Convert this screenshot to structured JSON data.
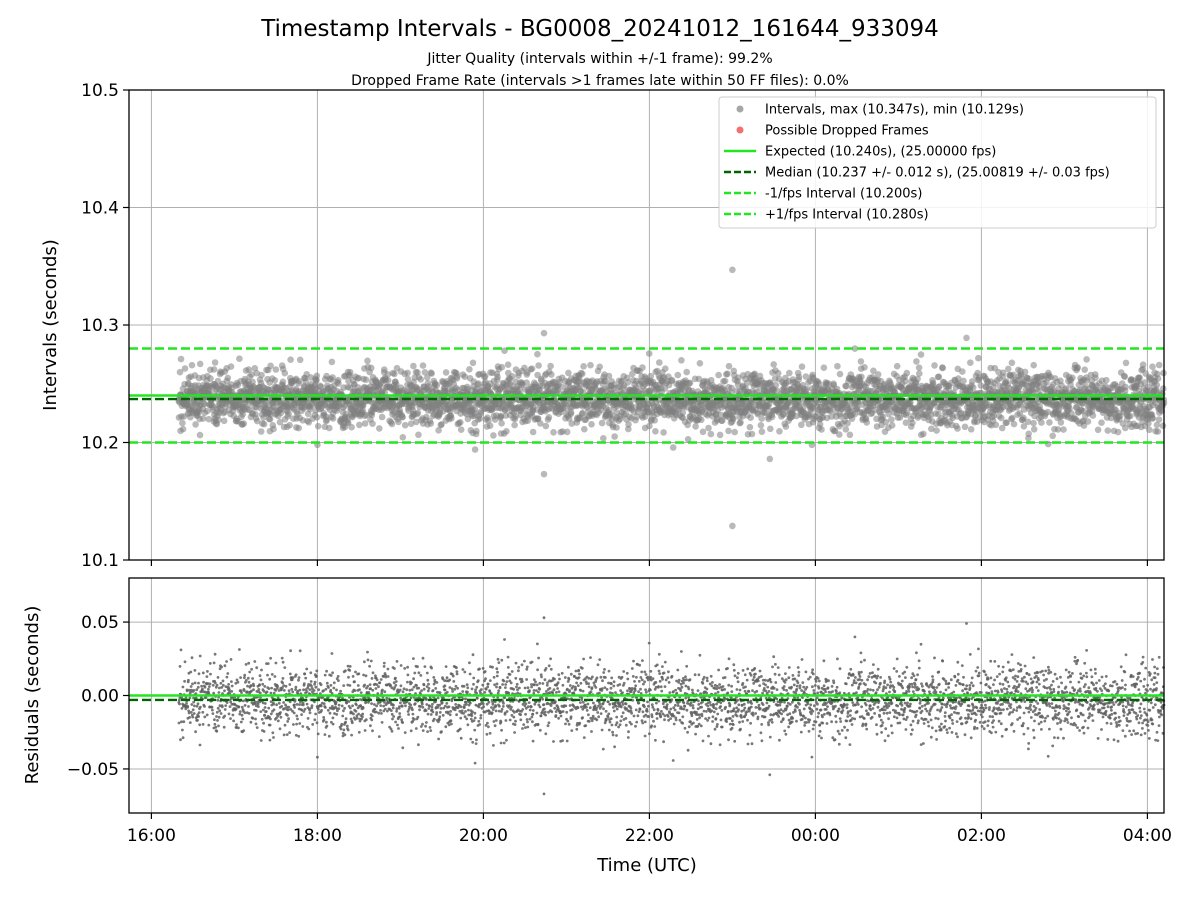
{
  "figure": {
    "title": "Timestamp Intervals - BG0008_20241012_161644_933094",
    "subtitle_1": "Jitter Quality (intervals within +/-1 frame): 99.2%",
    "subtitle_2": "Dropped Frame Rate (intervals >1 frames late within 50 FF files): 0.0%"
  },
  "colors": {
    "points": "#808080",
    "dropped": "#f06060",
    "expected": "#22e622",
    "median": "#006400",
    "fps_interval": "#22e622",
    "grid": "#b0b0b0"
  },
  "chart_data": [
    {
      "type": "scatter",
      "xlabel": "",
      "ylabel": "Intervals (seconds)",
      "ylim": [
        10.1,
        10.5
      ],
      "xlim_hours": [
        15.73,
        28.2
      ],
      "yticks": [
        "10.1",
        "10.2",
        "10.3",
        "10.4",
        "10.5"
      ],
      "ytick_values": [
        10.1,
        10.2,
        10.3,
        10.4,
        10.5
      ],
      "grid": true,
      "legend_position": "top-right",
      "legend": [
        {
          "label": "Intervals, max (10.347s), min (10.129s)",
          "marker": "dot",
          "color": "#808080"
        },
        {
          "label": "Possible Dropped Frames",
          "marker": "dot",
          "color": "#f06060"
        },
        {
          "label": "Expected (10.240s), (25.00000 fps)",
          "marker": "solid",
          "color": "#22e622"
        },
        {
          "label": "Median (10.237 +/- 0.012 s), (25.00819 +/- 0.03 fps)",
          "marker": "dashed",
          "color": "#006400"
        },
        {
          "label": "-1/fps Interval (10.200s)",
          "marker": "dashed",
          "color": "#22e622"
        },
        {
          "label": "+1/fps Interval (10.280s)",
          "marker": "dashed",
          "color": "#22e622"
        }
      ],
      "series": [
        {
          "name": "Intervals",
          "start_hour": 16.33,
          "end_hour": 28.2,
          "count": 4100,
          "center": 10.237,
          "std": 0.012,
          "max": 10.347,
          "min": 10.129
        },
        {
          "name": "Possible Dropped Frames",
          "count": 0
        }
      ],
      "reference_lines": {
        "expected": 10.24,
        "median": 10.237,
        "minus_1fps": 10.2,
        "plus_1fps": 10.28
      },
      "notable_points": [
        {
          "hour": 23.0,
          "y": 10.347
        },
        {
          "hour": 23.0,
          "y": 10.129
        },
        {
          "hour": 20.73,
          "y": 10.173
        },
        {
          "hour": 20.73,
          "y": 10.293
        },
        {
          "hour": 23.45,
          "y": 10.186
        },
        {
          "hour": 25.82,
          "y": 10.289
        },
        {
          "hour": 19.9,
          "y": 10.194
        },
        {
          "hour": 18.0,
          "y": 10.198
        }
      ]
    },
    {
      "type": "scatter",
      "xlabel": "Time (UTC)",
      "ylabel": "Residuals (seconds)",
      "ylim": [
        -0.08,
        0.08
      ],
      "yticks": [
        "0.05",
        "0.00",
        "−0.05"
      ],
      "ytick_values": [
        0.05,
        0.0,
        -0.05
      ],
      "xticks": [
        "16:00",
        "18:00",
        "20:00",
        "22:00",
        "00:00",
        "02:00",
        "04:00"
      ],
      "xtick_hours": [
        16,
        18,
        20,
        22,
        24,
        26,
        28
      ],
      "grid": true,
      "series": [
        {
          "name": "Residuals",
          "start_hour": 16.33,
          "end_hour": 28.2,
          "count": 4100,
          "center": -0.003,
          "std": 0.012,
          "max": 0.054,
          "min": -0.068
        }
      ],
      "reference_lines": {
        "expected": 0.0,
        "median": -0.003
      }
    }
  ]
}
